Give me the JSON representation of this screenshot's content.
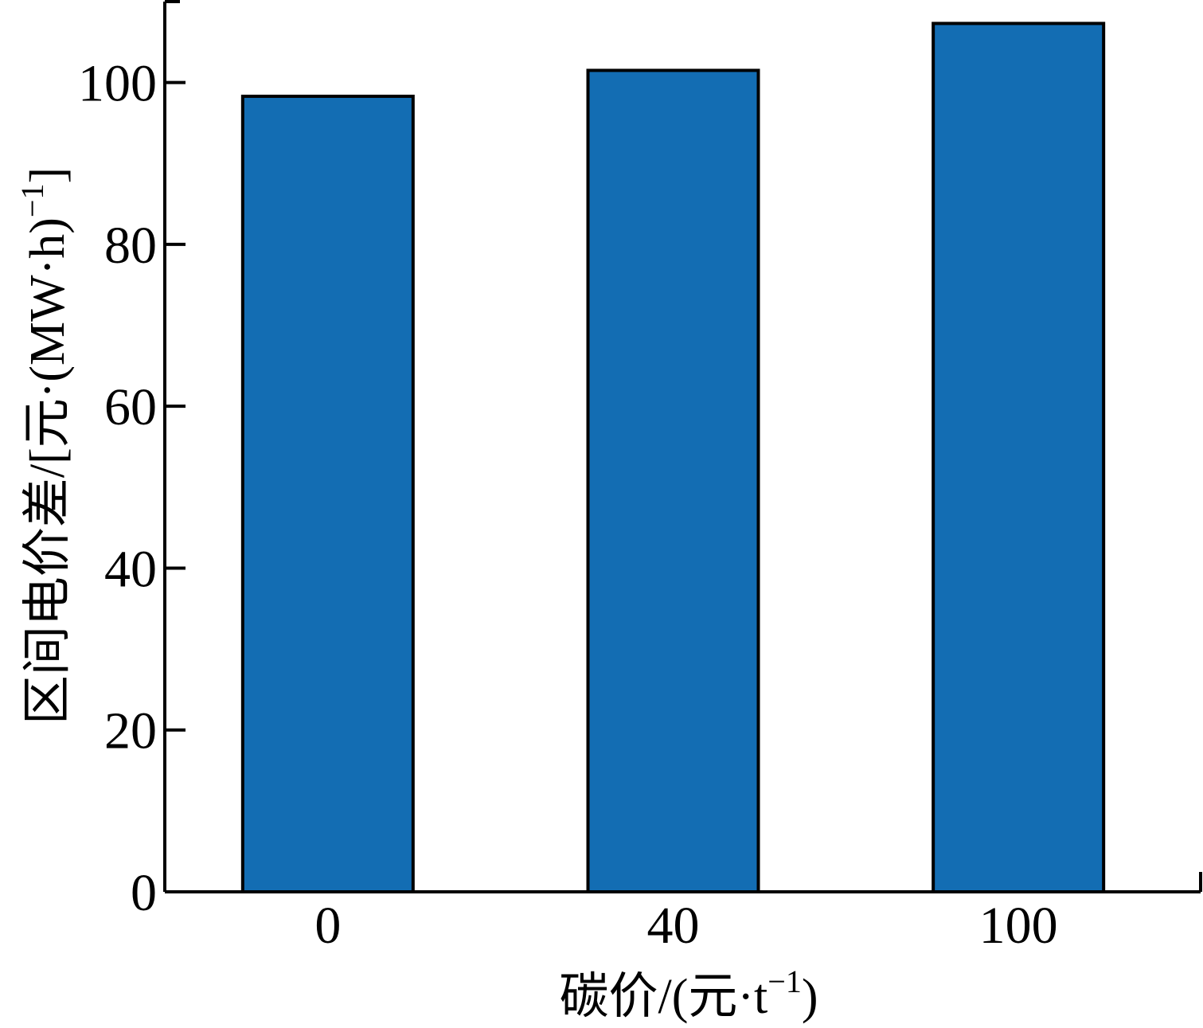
{
  "chart_data": {
    "type": "bar",
    "categories": [
      "0",
      "40",
      "100"
    ],
    "values": [
      98.3,
      101.5,
      107.3
    ],
    "xlabel": {
      "text": "碳价/(元·t",
      "sup": "−1",
      "tail": ")"
    },
    "ylabel": {
      "text": "区间电价差/[元·(MW·h)",
      "sup": "−1",
      "tail": "]"
    },
    "ylim": [
      0,
      110
    ],
    "yticks": [
      0,
      20,
      40,
      60,
      80,
      100
    ],
    "bar_color": "#136db3",
    "grid": false,
    "legend": "none"
  }
}
